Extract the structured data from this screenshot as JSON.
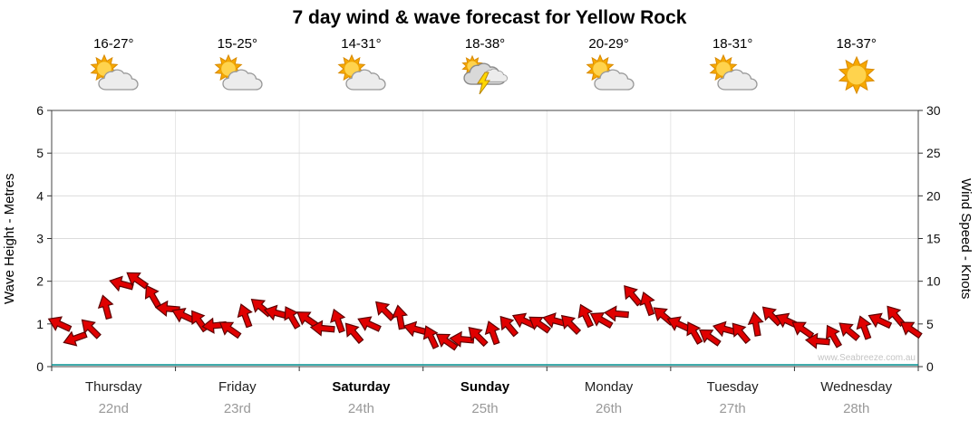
{
  "page": {
    "title": "7 day wind & wave forecast for Yellow Rock",
    "watermark": "www.Seabreeze.com.au"
  },
  "axes": {
    "left": {
      "label": "Wave Height - Metres",
      "ticks": [
        0,
        1,
        2,
        3,
        4,
        5,
        6
      ],
      "range": [
        0,
        6
      ]
    },
    "right": {
      "label": "Wind Speed - Knots",
      "ticks": [
        0,
        5,
        10,
        15,
        20,
        25,
        30
      ],
      "range": [
        0,
        30
      ]
    }
  },
  "days": [
    {
      "name": "Thursday",
      "date": "22nd",
      "temp": "16-27°",
      "icon": "sun-cloud",
      "weekend": false
    },
    {
      "name": "Friday",
      "date": "23rd",
      "temp": "15-25°",
      "icon": "sun-cloud",
      "weekend": false
    },
    {
      "name": "Saturday",
      "date": "24th",
      "temp": "14-31°",
      "icon": "sun-cloud",
      "weekend": true
    },
    {
      "name": "Sunday",
      "date": "25th",
      "temp": "18-38°",
      "icon": "storm",
      "weekend": true
    },
    {
      "name": "Monday",
      "date": "26th",
      "temp": "20-29°",
      "icon": "sun-cloud",
      "weekend": false
    },
    {
      "name": "Tuesday",
      "date": "27th",
      "temp": "18-31°",
      "icon": "sun-cloud",
      "weekend": false
    },
    {
      "name": "Wednesday",
      "date": "28th",
      "temp": "18-37°",
      "icon": "sun",
      "weekend": false
    }
  ],
  "colors": {
    "arrow_fill": "#e00000",
    "arrow_outline": "#5e0000",
    "baseline": "#009090",
    "grid": "#dcdcdc",
    "grid_vertical": "#e6e6e6",
    "frame": "#444444",
    "tick": "#333333"
  },
  "chart_data": {
    "type": "wind-arrows",
    "title": "7 day wind & wave forecast for Yellow Rock",
    "x_categories": [
      "Thursday 22nd",
      "Friday 23rd",
      "Saturday 24th",
      "Sunday 25th",
      "Monday 26th",
      "Tuesday 27th",
      "Wednesday 28th"
    ],
    "points_per_day": 8,
    "y_left": {
      "label": "Wave Height - Metres",
      "range": [
        0,
        6
      ],
      "ticks": [
        0,
        1,
        2,
        3,
        4,
        5,
        6
      ]
    },
    "y_right": {
      "label": "Wind Speed - Knots",
      "range": [
        0,
        30
      ],
      "ticks": [
        0,
        5,
        10,
        15,
        20,
        25,
        30
      ]
    },
    "grid": "horizontal",
    "legend": "none",
    "series": [
      {
        "name": "Wind speed",
        "units": "knots",
        "values": [
          5.0,
          3.3,
          4.5,
          7.0,
          9.7,
          10.2,
          8.3,
          6.8,
          6.0,
          5.4,
          4.8,
          4.4,
          6.0,
          7.0,
          6.3,
          5.8,
          5.6,
          4.5,
          5.4,
          4.0,
          5.0,
          6.6,
          5.8,
          4.4,
          3.5,
          3.0,
          3.2,
          3.6,
          4.0,
          4.8,
          5.4,
          5.0,
          5.4,
          5.0,
          6.0,
          5.5,
          6.2,
          8.4,
          7.4,
          6.0,
          5.0,
          4.0,
          3.5,
          4.4,
          4.0,
          5.0,
          6.0,
          5.4,
          4.4,
          3.0,
          3.6,
          4.2,
          4.6,
          5.4,
          6.0,
          4.4
        ],
        "directions_deg": [
          205,
          160,
          225,
          255,
          195,
          215,
          240,
          185,
          205,
          235,
          175,
          215,
          250,
          220,
          195,
          240,
          215,
          185,
          250,
          230,
          205,
          225,
          260,
          195,
          245,
          215,
          185,
          225,
          250,
          230,
          205,
          215,
          195,
          225,
          245,
          210,
          185,
          230,
          250,
          220,
          205,
          240,
          215,
          195,
          230,
          260,
          225,
          205,
          215,
          185,
          240,
          220,
          250,
          205,
          230,
          215
        ]
      }
    ],
    "day_summary": [
      {
        "day": "Thursday 22nd",
        "temp_range_c": "16-27",
        "conditions": "partly-cloudy"
      },
      {
        "day": "Friday 23rd",
        "temp_range_c": "15-25",
        "conditions": "partly-cloudy"
      },
      {
        "day": "Saturday 24th",
        "temp_range_c": "14-31",
        "conditions": "partly-cloudy"
      },
      {
        "day": "Sunday 25th",
        "temp_range_c": "18-38",
        "conditions": "thunderstorm"
      },
      {
        "day": "Monday 26th",
        "temp_range_c": "20-29",
        "conditions": "partly-cloudy"
      },
      {
        "day": "Tuesday 27th",
        "temp_range_c": "18-31",
        "conditions": "partly-cloudy"
      },
      {
        "day": "Wednesday 28th",
        "temp_range_c": "18-37",
        "conditions": "sunny"
      }
    ]
  }
}
